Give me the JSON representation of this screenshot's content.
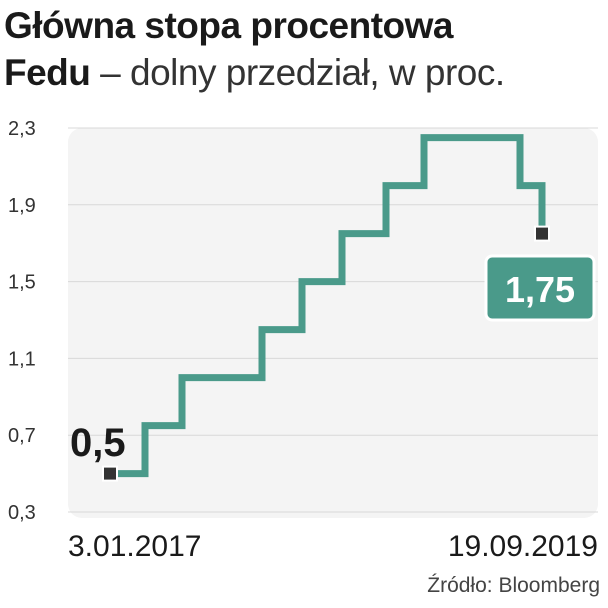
{
  "header": {
    "title_line1": "Główna stopa procentowa",
    "title_bold2": "Fedu",
    "title_rest2": " – dolny przedział, w proc."
  },
  "source": "Źródło: Bloomberg",
  "colors": {
    "line": "#4a9a8a",
    "label_bg": "#4a9a8a",
    "plot_bg": "#f4f4f4"
  },
  "chart_data": {
    "type": "line",
    "step": true,
    "ylim": [
      0.3,
      2.3
    ],
    "y_ticks": [
      "2,3",
      "1,9",
      "1,5",
      "1,1",
      "0,7",
      "0,3"
    ],
    "x_labels": [
      "3.01.2017",
      "19.09.2019"
    ],
    "start_label": "0,5",
    "end_label": "1,75",
    "values": [
      0.5,
      0.75,
      1.0,
      1.25,
      1.5,
      1.75,
      2.0,
      2.25,
      2.0,
      1.75
    ]
  }
}
